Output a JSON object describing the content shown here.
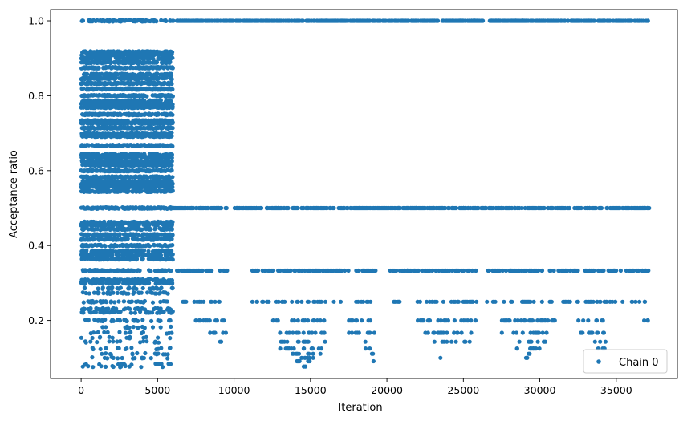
{
  "chart_data": {
    "type": "scatter",
    "title": "",
    "xlabel": "Iteration",
    "ylabel": "Acceptance ratio",
    "xlim": [
      -2000,
      39000
    ],
    "ylim": [
      0.045,
      1.03
    ],
    "xticks": [
      0,
      5000,
      10000,
      15000,
      20000,
      25000,
      30000,
      35000
    ],
    "xtick_labels": [
      "0",
      "5000",
      "10000",
      "15000",
      "20000",
      "25000",
      "30000",
      "35000"
    ],
    "yticks": [
      0.2,
      0.4,
      0.6,
      0.8,
      1.0
    ],
    "ytick_labels": [
      "0.2",
      "0.4",
      "0.6",
      "0.8",
      "1.0"
    ],
    "grid": false,
    "legend": {
      "position": "lower-right",
      "entries": [
        "Chain 0"
      ]
    },
    "series": [
      {
        "name": "Chain 0",
        "color": "#1f77b4",
        "marker": "circle",
        "description": "Early phase (iterations 0 to ~6000): dense bands across many fractional levels from ~0.08 to ~0.93 plus 1.0. Later phase (~6000 to ~37200): points concentrated at 1.0, 0.5, 0.333, 0.25, 0.2, 0.167 and sparser lower levels.",
        "x_range": [
          0,
          37200
        ],
        "segments": [
          {
            "x": [
              0,
              6000
            ],
            "levels": [
              1.0,
              0.917,
              0.909,
              0.9,
              0.889,
              0.875,
              0.857,
              0.846,
              0.833,
              0.818,
              0.8,
              0.786,
              0.778,
              0.769,
              0.75,
              0.733,
              0.727,
              0.714,
              0.7,
              0.692,
              0.667,
              0.643,
              0.636,
              0.625,
              0.615,
              0.6,
              0.583,
              0.571,
              0.563,
              0.556,
              0.545,
              0.5,
              0.462,
              0.455,
              0.444,
              0.429,
              0.417,
              0.4,
              0.385,
              0.375,
              0.364,
              0.333,
              0.308,
              0.3,
              0.286,
              0.273,
              0.25,
              0.231,
              0.222,
              0.2,
              0.182,
              0.167,
              0.154,
              0.143,
              0.125,
              0.111,
              0.1,
              0.083,
              0.077
            ]
          },
          {
            "x": [
              6000,
              37200
            ],
            "levels": [
              1.0,
              0.5,
              0.333,
              0.25,
              0.2,
              0.167,
              0.143,
              0.125,
              0.111,
              0.1,
              0.091,
              0.077
            ]
          }
        ]
      }
    ]
  }
}
